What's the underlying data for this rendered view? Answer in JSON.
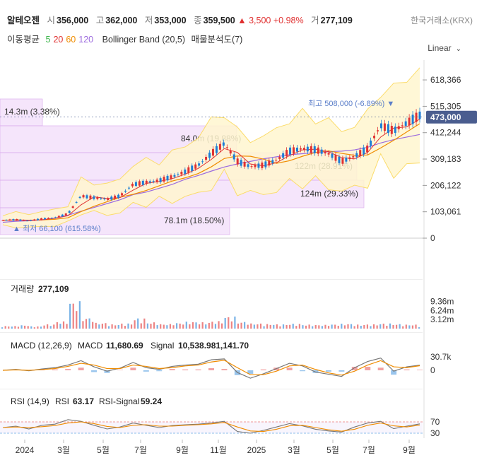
{
  "header": {
    "name": "알테오젠",
    "open_label": "시",
    "open": "356,000",
    "high_label": "고",
    "high": "362,000",
    "low_label": "저",
    "low": "353,000",
    "close_label": "종",
    "close": "359,500",
    "change": "▲ 3,500",
    "change_pct": "+0.98%",
    "volume_label": "거",
    "volume": "277,109",
    "exchange": "한국거래소(KRX)"
  },
  "legend": {
    "ma_label": "이동평균",
    "ma_periods": [
      {
        "text": "5",
        "color": "#3bb54a"
      },
      {
        "text": "20",
        "color": "#e03131"
      },
      {
        "text": "60",
        "color": "#f08c00"
      },
      {
        "text": "120",
        "color": "#9c6ade"
      }
    ],
    "bollinger": "Bollinger Band (20,5)",
    "volume_profile": "매물분석도(7)"
  },
  "scale_mode": "Linear",
  "colors": {
    "up": "#e03131",
    "down": "#1c7ed6",
    "band": "#fbdc6b",
    "band_fill": "#fff6cf",
    "profile": "#e9c6f7",
    "last_price_bg": "#4a5d8f",
    "macd": "#777777",
    "signal": "#f08c00",
    "rsi_signal": "#f08c00"
  },
  "chart_data": [
    {
      "type": "line",
      "name": "price",
      "y_ticks": [
        "618,366",
        "515,305",
        "412,244",
        "309,183",
        "206,122",
        "103,061",
        "0"
      ],
      "ylim": [
        0,
        640000
      ],
      "x_ticks": [
        "2024",
        "3월",
        "5월",
        "7월",
        "9월",
        "11월",
        "2025",
        "3월",
        "5월",
        "7월",
        "9월"
      ],
      "last_price": "473,000",
      "high_annotation": "최고 508,000 (-6.89%)",
      "low_annotation": "최저 66,100 (615.58%)",
      "profile_labels": [
        "14.3m (3.38%)",
        "84.0m (19.88%)",
        "122m (28.91%)",
        "124m (29.33%)",
        "78.1m (18.50%)"
      ],
      "series": [
        {
          "name": "종가",
          "values": [
            70000,
            72000,
            68000,
            75000,
            80000,
            95000,
            165000,
            158000,
            152000,
            165000,
            210000,
            218000,
            225000,
            240000,
            260000,
            285000,
            330000,
            370000,
            300000,
            280000,
            285000,
            305000,
            340000,
            350000,
            345000,
            330000,
            300000,
            320000,
            350000,
            440000,
            420000,
            450000,
            480000
          ]
        },
        {
          "name": "MA120",
          "values": [
            62000,
            66000,
            68000,
            72000,
            78000,
            90000,
            105000,
            120000,
            135000,
            150000,
            170000,
            180000,
            195000,
            210000,
            230000,
            245000,
            262000,
            278000,
            290000,
            300000,
            310000,
            318000,
            326000,
            330000,
            335000,
            338000,
            340000,
            345000,
            355000,
            372000,
            385000,
            395000,
            405000
          ]
        }
      ]
    },
    {
      "type": "bar",
      "name": "volume",
      "title_label": "거래량",
      "title_value": "277,109",
      "y_ticks": [
        "9.36m",
        "6.24m",
        "3.12m"
      ],
      "ylim": [
        0,
        11000000
      ],
      "values": [
        900000,
        1200000,
        800000,
        1500000,
        2500000,
        9500000,
        3800000,
        2000000,
        1500000,
        1800000,
        3600000,
        2200000,
        1600000,
        2000000,
        2400000,
        2200000,
        2600000,
        4200000,
        2400000,
        1800000,
        1600000,
        1500000,
        1700000,
        1400000,
        1300000,
        1500000,
        1700000,
        1400000,
        1500000,
        1800000,
        1600000,
        1400000,
        900000
      ]
    },
    {
      "type": "line",
      "name": "MACD",
      "title_label": "MACD (12,26,9)",
      "macd_label": "MACD",
      "macd_value": "11,680.69",
      "signal_label": "Signal",
      "signal_value": "10,538.981,141.70",
      "y_ticks": [
        "30.7k",
        "0"
      ],
      "series": [
        {
          "name": "MACD",
          "values": [
            0,
            2000,
            -1000,
            3000,
            6000,
            12000,
            22000,
            8000,
            -2000,
            5000,
            18000,
            6000,
            2000,
            9000,
            12000,
            14000,
            24000,
            26000,
            -5000,
            -18000,
            -8000,
            4000,
            16000,
            10000,
            -4000,
            -9000,
            -14000,
            6000,
            20000,
            28000,
            -2000,
            8000,
            11700
          ]
        },
        {
          "name": "Signal",
          "values": [
            0,
            1000,
            0,
            1500,
            4000,
            9000,
            16000,
            12000,
            4000,
            4000,
            12000,
            9000,
            4000,
            6000,
            10000,
            12000,
            19000,
            23000,
            6000,
            -10000,
            -10000,
            -2000,
            10000,
            12000,
            2000,
            -6000,
            -11000,
            -2000,
            12000,
            22000,
            8000,
            6000,
            10500
          ]
        }
      ]
    },
    {
      "type": "line",
      "name": "RSI",
      "title_label": "RSI (14,9)",
      "rsi_label": "RSI",
      "rsi_value": "63.17",
      "signal_label": "RSI-Signal",
      "signal_value": "59.24",
      "y_ticks": [
        "70",
        "30"
      ],
      "ylim": [
        0,
        100
      ],
      "series": [
        {
          "name": "RSI",
          "values": [
            50,
            55,
            45,
            58,
            62,
            78,
            72,
            58,
            45,
            52,
            66,
            58,
            50,
            57,
            60,
            62,
            66,
            72,
            36,
            30,
            40,
            52,
            64,
            56,
            44,
            38,
            34,
            52,
            66,
            72,
            46,
            55,
            63
          ]
        },
        {
          "name": "RSI-Signal",
          "values": [
            50,
            52,
            50,
            53,
            57,
            66,
            70,
            64,
            54,
            50,
            58,
            60,
            55,
            55,
            58,
            60,
            63,
            68,
            52,
            38,
            36,
            44,
            56,
            58,
            50,
            42,
            37,
            44,
            58,
            66,
            56,
            52,
            59
          ]
        }
      ]
    }
  ]
}
